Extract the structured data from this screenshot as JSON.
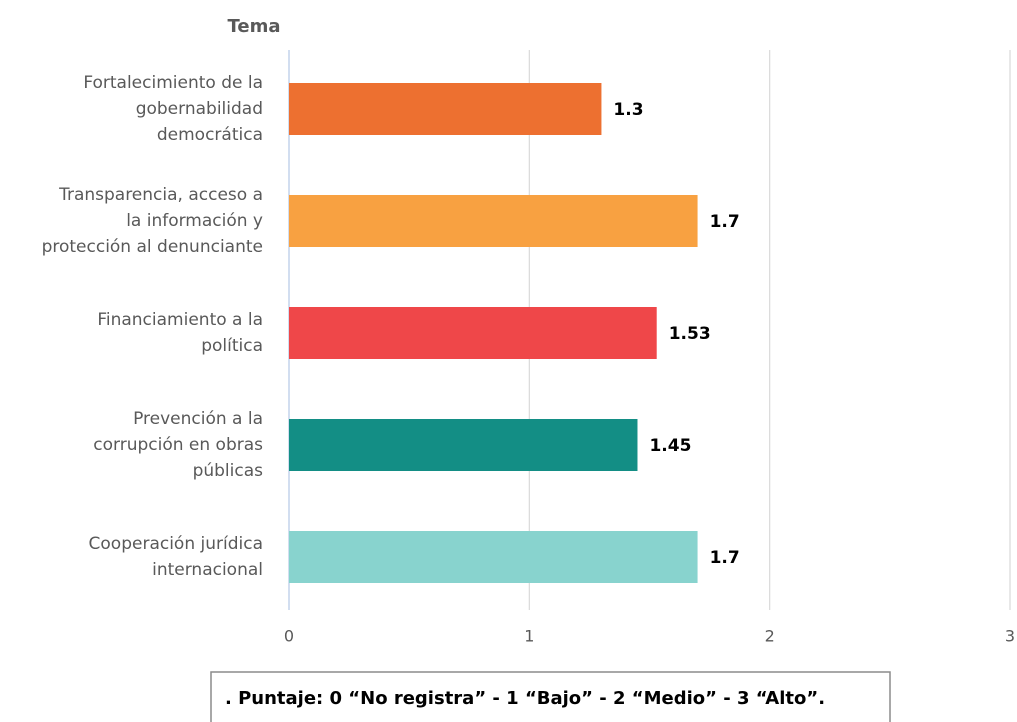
{
  "chart_data": {
    "type": "bar",
    "orientation": "horizontal",
    "y_axis_title": "Tema",
    "categories": [
      [
        "Fortalecimiento de la",
        "gobernabilidad",
        "democrática"
      ],
      [
        "Transparencia, acceso a",
        "la información y",
        "protección al denunciante"
      ],
      [
        "Financiamiento a la",
        "política"
      ],
      [
        "Prevención a la",
        "corrupción en obras",
        "públicas"
      ],
      [
        "Cooperación jurídica",
        "internacional"
      ]
    ],
    "values": [
      1.3,
      1.7,
      1.53,
      1.45,
      1.7
    ],
    "colors": [
      "#ED7030",
      "#F8A141",
      "#EF4749",
      "#138E85",
      "#88D3CE"
    ],
    "xlim": [
      0,
      3
    ],
    "xticks": [
      0,
      1,
      2,
      3
    ],
    "grid": true,
    "note": ". Puntaje: 0 “No registra” - 1 “Bajo” - 2 “Medio” - 3 “Alto”."
  }
}
